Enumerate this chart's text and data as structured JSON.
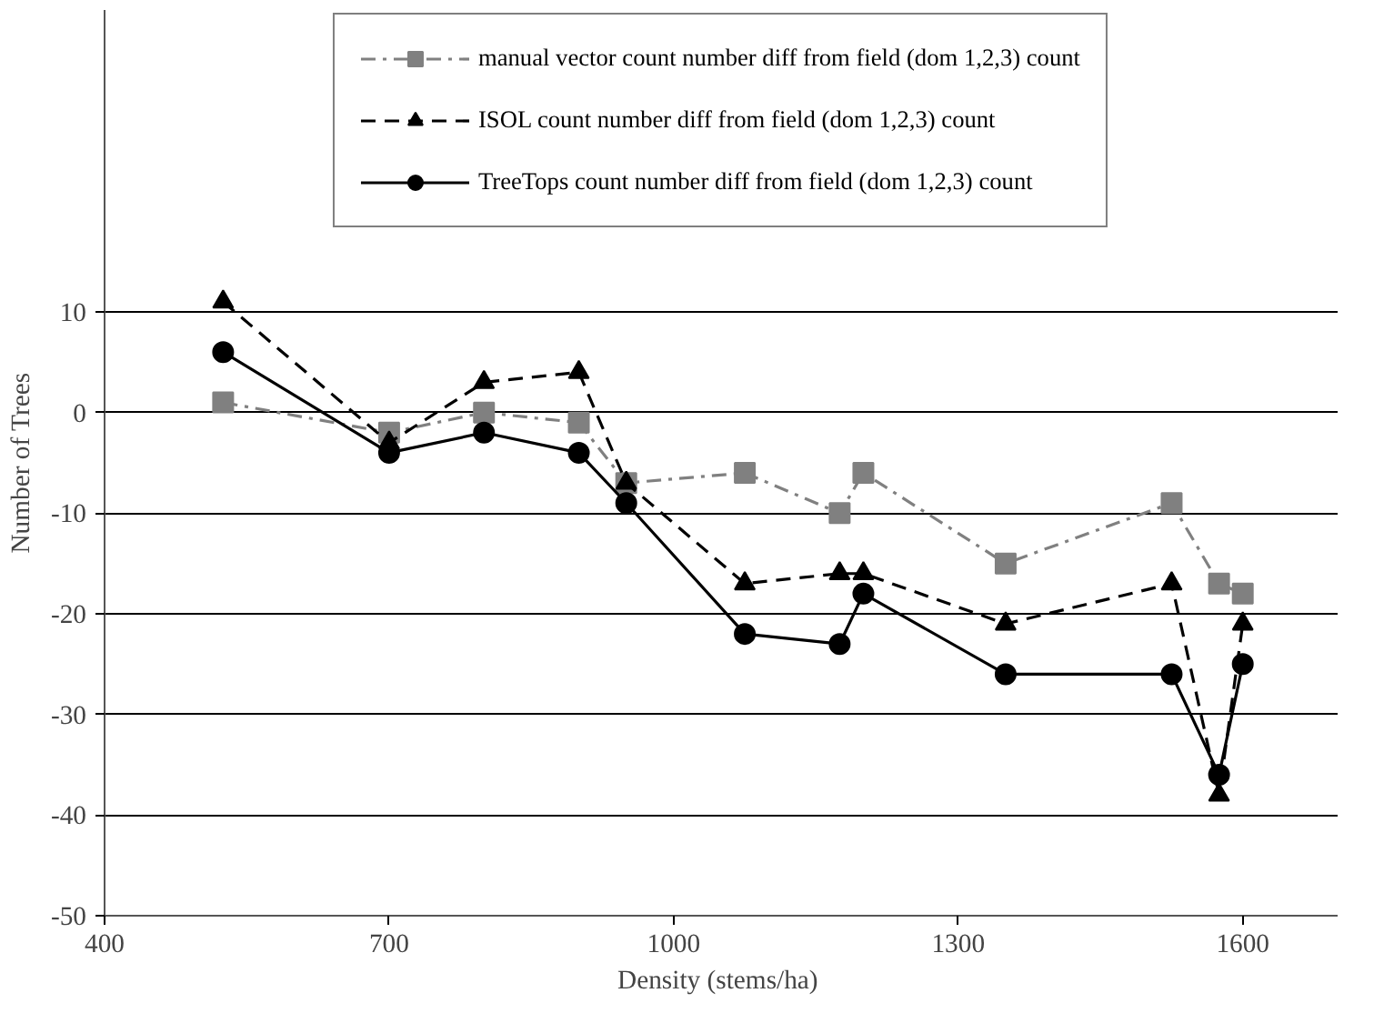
{
  "chart_data": {
    "type": "line",
    "xlabel": "Density  (stems/ha)",
    "ylabel": "Number of Trees",
    "xlim": [
      400,
      1700
    ],
    "xticks": [
      400,
      700,
      1000,
      1300,
      1600
    ],
    "ylim": [
      -50,
      40
    ],
    "yticks": [
      -50,
      -40,
      -30,
      -20,
      -10,
      0,
      10
    ],
    "grid": "y",
    "legend": "top",
    "series": [
      {
        "name": "manual vector count number diff from field (dom 1,2,3) count",
        "color": "#808080",
        "marker": "square",
        "line_style": "dashdot",
        "x": [
          525,
          700,
          800,
          900,
          950,
          1075,
          1175,
          1200,
          1350,
          1525,
          1575,
          1600
        ],
        "values": [
          1,
          -2,
          0,
          -1,
          -7,
          -6,
          -10,
          -6,
          -15,
          -9,
          -17,
          -18
        ]
      },
      {
        "name": "ISOL count number diff from field (dom 1,2,3) count",
        "color": "#000000",
        "marker": "triangle",
        "line_style": "dashed",
        "x": [
          525,
          700,
          800,
          900,
          950,
          1075,
          1175,
          1200,
          1350,
          1525,
          1575,
          1600
        ],
        "values": [
          11,
          -3,
          3,
          4,
          -7,
          -17,
          -16,
          -16,
          -21,
          -17,
          -38,
          -21
        ]
      },
      {
        "name": "TreeTops count number diff from field (dom 1,2,3) count",
        "color": "#000000",
        "marker": "circle",
        "line_style": "solid",
        "x": [
          525,
          700,
          800,
          900,
          950,
          1075,
          1175,
          1200,
          1350,
          1525,
          1575,
          1600
        ],
        "values": [
          6,
          -4,
          -2,
          -4,
          -9,
          -22,
          -23,
          -18,
          -26,
          -26,
          -36,
          -25
        ]
      }
    ]
  }
}
